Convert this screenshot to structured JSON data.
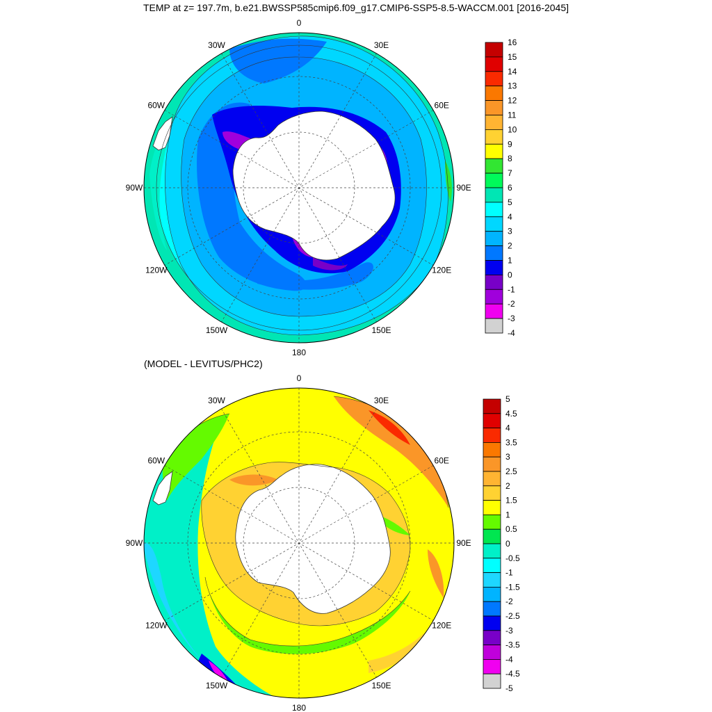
{
  "title": "TEMP at z= 197.7m, b.e21.BWSSP585cmip6.f09_g17.CMIP6-SSP5-8.5-WACCM.001 [2016-2045]",
  "panel2_title": "(MODEL - LEVITUS/PHC2)",
  "lon_labels": [
    "0",
    "30E",
    "60E",
    "90E",
    "120E",
    "150E",
    "180",
    "150W",
    "120W",
    "90W",
    "60W",
    "30W"
  ],
  "colorbars": [
    {
      "name": "temperature",
      "labels": [
        "16",
        "15",
        "14",
        "13",
        "12",
        "11",
        "10",
        "9",
        "8",
        "7",
        "6",
        "5",
        "4",
        "3",
        "2",
        "1",
        "0",
        "-1",
        "-2",
        "-3",
        "-4"
      ],
      "colors": [
        "#c40000",
        "#e00000",
        "#fa2a00",
        "#fa7800",
        "#fa9628",
        "#ffb432",
        "#ffd232",
        "#ffff00",
        "#32e632",
        "#00fa5a",
        "#00e6b4",
        "#00ffff",
        "#00d7ff",
        "#00b4ff",
        "#0078ff",
        "#0000f0",
        "#7800c8",
        "#a000dc",
        "#f000f0",
        "#d2d2d2",
        "#787878"
      ]
    },
    {
      "name": "difference",
      "labels": [
        "5",
        "4.5",
        "4",
        "3.5",
        "3",
        "2.5",
        "2",
        "1.5",
        "1",
        "0.5",
        "0",
        "-0.5",
        "-1",
        "-1.5",
        "-2",
        "-2.5",
        "-3",
        "-3.5",
        "-4",
        "-4.5",
        "-5"
      ],
      "colors": [
        "#c40000",
        "#e00000",
        "#fa2a00",
        "#fa7800",
        "#fa9628",
        "#ffb432",
        "#ffd232",
        "#ffff00",
        "#64fa00",
        "#00e650",
        "#00f0c8",
        "#00ffff",
        "#1ed7ff",
        "#00b4ff",
        "#0078ff",
        "#0000f0",
        "#7800c8",
        "#c000dc",
        "#f000f0",
        "#d2d2d2",
        "#787878"
      ]
    }
  ]
}
